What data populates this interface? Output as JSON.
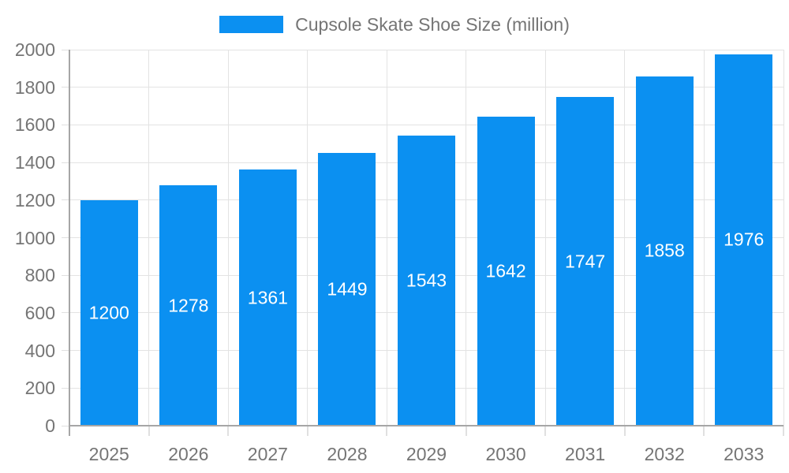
{
  "legend": {
    "label": "Cupsole Skate Shoe Size (million)"
  },
  "chart_data": {
    "type": "bar",
    "title": "Cupsole Skate Shoe Size (million)",
    "categories": [
      "2025",
      "2026",
      "2027",
      "2028",
      "2029",
      "2030",
      "2031",
      "2032",
      "2033"
    ],
    "values": [
      1200,
      1278,
      1361,
      1449,
      1543,
      1642,
      1747,
      1858,
      1976
    ],
    "xlabel": "",
    "ylabel": "",
    "ylim": [
      0,
      2000
    ],
    "ytick_step": 200,
    "grid": true,
    "legend_position": "top-center",
    "value_labels": "centered-inside-bars",
    "colors": {
      "bar": "#0b90f1",
      "value_label": "#ffffff",
      "tick_label": "#757575",
      "legend_text": "#757575",
      "gridline": "#e3e3e3",
      "axis_line": "#a6a6a6",
      "tick_mark": "#e0e0e0",
      "background": "#ffffff"
    }
  }
}
